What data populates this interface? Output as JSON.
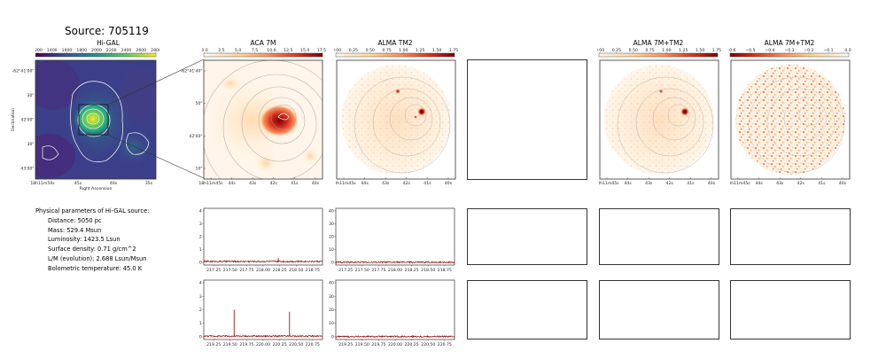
{
  "figure": {
    "title": "Source: 705119"
  },
  "parameters": {
    "heading": "Physical parameters of Hi-GAL source:",
    "lines": [
      "Distance: 5050 pc",
      "Mass: 529.4 Msun",
      "Luminosity: 1423.5 Lsun",
      "Surface density: 0.71 g/cm^2",
      "L/M (evolution): 2.688 Lsun/Msun",
      "Bolometric temperature: 45.0 K"
    ]
  },
  "chart_data": [
    {
      "type": "heatmap",
      "title": "Hi-GAL",
      "colorbar": {
        "ticks": [
          "1200",
          "1400",
          "1600",
          "1800",
          "2000",
          "2200",
          "2400",
          "2600",
          "2800"
        ],
        "colormap": "viridis"
      },
      "xlabel": "Right Ascension",
      "ylabel": "Declination",
      "x_ticks": [
        "18h11m50s",
        "45s",
        "40s",
        "35s"
      ],
      "y_ticks": [
        "-62°41'00\"",
        "30\"",
        "42'00\"",
        "30\"",
        "43'00\""
      ],
      "peak": {
        "ra_label": "42s",
        "dec_label": "42'00\""
      }
    },
    {
      "type": "heatmap",
      "title": "ACA 7M",
      "colorbar": {
        "ticks": [
          "0.0",
          "2.5",
          "5.0",
          "7.5",
          "10.0",
          "12.5",
          "15.0",
          "17.5"
        ],
        "colormap": "OrRd"
      },
      "x_ticks": [
        "18h11m45s",
        "44s",
        "43s",
        "42s",
        "41s",
        "40s"
      ],
      "y_ticks": [
        "-62°41'40\"",
        "50\"",
        "42'00\"",
        "10\""
      ]
    },
    {
      "type": "heatmap",
      "title": "ALMA TM2",
      "colorbar": {
        "ticks": [
          "0.00",
          "0.25",
          "0.50",
          "0.75",
          "1.00",
          "1.25",
          "1.50",
          "1.75"
        ],
        "colormap": "OrRd"
      },
      "x_ticks": [
        "18h11m45s",
        "44s",
        "43s",
        "42s",
        "41s",
        "40s"
      ]
    },
    {
      "type": "heatmap",
      "title": "ALMA 7M+TM2",
      "colorbar": {
        "ticks": [
          "0.00",
          "0.25",
          "0.50",
          "0.75",
          "1.00",
          "1.25",
          "1.50",
          "1.75"
        ],
        "colormap": "OrRd"
      },
      "x_ticks": [
        "18h11m45s",
        "44s",
        "43s",
        "42s",
        "41s",
        "40s"
      ]
    },
    {
      "type": "heatmap",
      "title": "ALMA 7M+TM2",
      "colorbar": {
        "ticks": [
          "−0.6",
          "−0.5",
          "−0.4",
          "−0.3",
          "−0.2",
          "−0.1",
          "0.0"
        ],
        "colormap": "OrRd_r"
      },
      "x_ticks": [
        "18h11m45s",
        "44s",
        "43s",
        "42s",
        "41s",
        "40s"
      ]
    },
    {
      "type": "line",
      "x_ticks": [
        217.25,
        217.5,
        217.75,
        218.0,
        218.25,
        218.5,
        218.75
      ],
      "xlim": [
        217.1,
        218.9
      ],
      "y_ticks": [
        0,
        1,
        2,
        3,
        4
      ],
      "ylim": [
        -0.2,
        4.2
      ],
      "baseline": 0.08,
      "spikes": [
        {
          "x": 218.23,
          "y": 0.35
        }
      ],
      "color": "#8b0000"
    },
    {
      "type": "line",
      "x_ticks": [
        217.25,
        217.5,
        217.75,
        218.0,
        218.25,
        218.5,
        218.75
      ],
      "xlim": [
        217.1,
        218.9
      ],
      "y_ticks": [
        0,
        10,
        20,
        30,
        40
      ],
      "ylim": [
        -2,
        42
      ],
      "baseline": 0.2,
      "spikes": [],
      "color": "#8b0000"
    },
    {
      "type": "line",
      "x_ticks": [
        219.25,
        219.5,
        219.75,
        220.0,
        220.25,
        220.5,
        220.75
      ],
      "xlim": [
        219.1,
        220.9
      ],
      "y_ticks": [
        0,
        1,
        2,
        3,
        4
      ],
      "ylim": [
        -0.2,
        4.2
      ],
      "baseline": 0.05,
      "spikes": [
        {
          "x": 219.56,
          "y": 2.0
        },
        {
          "x": 220.4,
          "y": 1.85
        }
      ],
      "color": "#8b0000"
    },
    {
      "type": "line",
      "x_ticks": [
        219.25,
        219.5,
        219.75,
        220.0,
        220.25,
        220.5,
        220.75
      ],
      "xlim": [
        219.1,
        220.9
      ],
      "y_ticks": [
        0,
        10,
        20,
        30,
        40
      ],
      "ylim": [
        -2,
        42
      ],
      "baseline": 0.2,
      "spikes": [
        {
          "x": 220.26,
          "y": 1.0
        }
      ],
      "color": "#8b0000"
    }
  ]
}
